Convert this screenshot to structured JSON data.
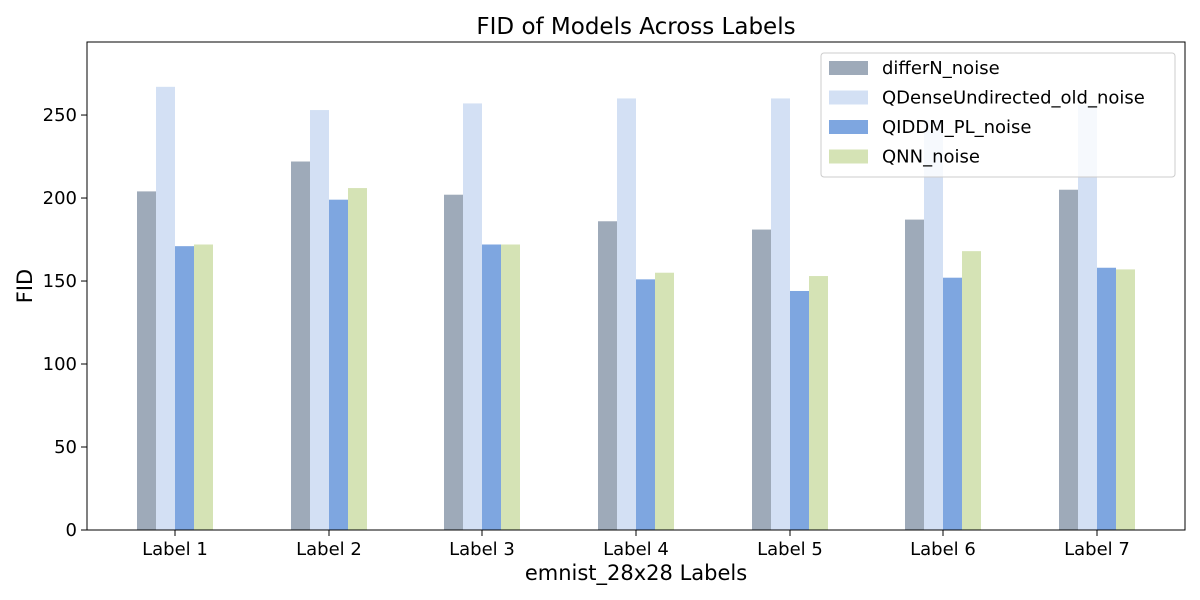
{
  "chart_data": {
    "type": "bar",
    "title": "FID of Models Across Labels",
    "xlabel": "emnist_28x28 Labels",
    "ylabel": "FID",
    "categories": [
      "Label 1",
      "Label 2",
      "Label 3",
      "Label 4",
      "Label 5",
      "Label 6",
      "Label 7"
    ],
    "ylim": [
      0,
      294
    ],
    "yticks": [
      0,
      50,
      100,
      150,
      200,
      250
    ],
    "grid": false,
    "legend_position": "top-right",
    "series": [
      {
        "name": "differN_noise",
        "color": "#9eaab9",
        "values": [
          204,
          222,
          202,
          186,
          181,
          187,
          205
        ]
      },
      {
        "name": "QDenseUndirected_old_noise",
        "color": "#d3e0f4",
        "values": [
          267,
          253,
          257,
          260,
          260,
          247,
          256
        ]
      },
      {
        "name": "QIDDM_PL_noise",
        "color": "#7ea6e0",
        "values": [
          171,
          199,
          172,
          151,
          144,
          152,
          158
        ]
      },
      {
        "name": "QNN_noise",
        "color": "#d5e3b5",
        "values": [
          172,
          206,
          172,
          155,
          153,
          168,
          157
        ]
      }
    ]
  }
}
